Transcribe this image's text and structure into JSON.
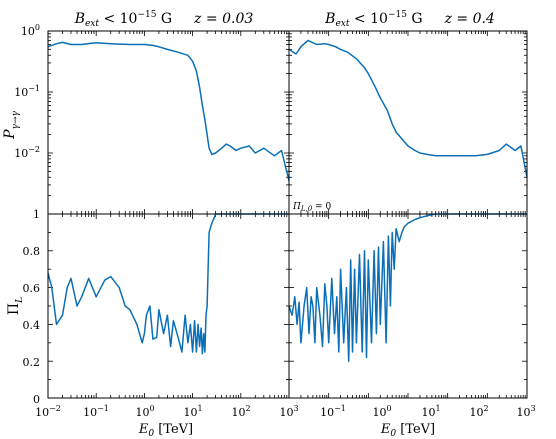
{
  "chart_data": [
    {
      "type": "line",
      "panel": "top-left",
      "title": "B_ext < 10^-15 G    z = 0.03",
      "ylabel": "P_γ→γ",
      "yscale": "log",
      "ylim": [
        0.001,
        1
      ],
      "xscale": "log",
      "xlim": [
        0.01,
        1000
      ],
      "series": [
        {
          "color": "#0b6fb8",
          "x": [
            0.01,
            0.015,
            0.02,
            0.03,
            0.05,
            0.08,
            0.1,
            0.2,
            0.3,
            0.5,
            0.8,
            1,
            1.5,
            2,
            3,
            5,
            8,
            10,
            12,
            14,
            16,
            18,
            20,
            22,
            25,
            30,
            40,
            50,
            60,
            80,
            100,
            150,
            200,
            300,
            500,
            700,
            1000
          ],
          "y": [
            0.55,
            0.62,
            0.65,
            0.6,
            0.6,
            0.63,
            0.64,
            0.62,
            0.61,
            0.6,
            0.6,
            0.6,
            0.58,
            0.55,
            0.5,
            0.45,
            0.4,
            0.32,
            0.22,
            0.12,
            0.06,
            0.035,
            0.02,
            0.012,
            0.0095,
            0.01,
            0.012,
            0.014,
            0.013,
            0.011,
            0.012,
            0.013,
            0.01,
            0.012,
            0.009,
            0.011,
            0.0035
          ]
        }
      ]
    },
    {
      "type": "line",
      "panel": "top-right",
      "title": "B_ext < 10^-15 G    z = 0.4",
      "yscale": "log",
      "ylim": [
        0.001,
        1
      ],
      "xscale": "log",
      "xlim": [
        0.001,
        1000
      ],
      "series": [
        {
          "color": "#0b6fb8",
          "x": [
            0.001,
            0.0015,
            0.002,
            0.003,
            0.005,
            0.008,
            0.01,
            0.015,
            0.02,
            0.03,
            0.05,
            0.08,
            0.1,
            0.15,
            0.2,
            0.3,
            0.4,
            0.5,
            0.7,
            1,
            1.5,
            2,
            3,
            5,
            10,
            20,
            50,
            100,
            200,
            300,
            500,
            700,
            1000
          ],
          "y": [
            0.5,
            0.42,
            0.55,
            0.7,
            0.6,
            0.62,
            0.6,
            0.55,
            0.5,
            0.45,
            0.35,
            0.25,
            0.2,
            0.12,
            0.08,
            0.05,
            0.03,
            0.022,
            0.017,
            0.013,
            0.011,
            0.01,
            0.0095,
            0.009,
            0.009,
            0.009,
            0.009,
            0.0095,
            0.011,
            0.014,
            0.011,
            0.013,
            0.004
          ]
        }
      ]
    },
    {
      "type": "line",
      "panel": "bottom-left",
      "ylabel": "Π_L",
      "xlabel": "E_0 [TeV]",
      "ylim": [
        0,
        1
      ],
      "yticks": [
        0,
        0.2,
        0.4,
        0.6,
        0.8,
        1
      ],
      "xscale": "log",
      "xlim": [
        0.01,
        1000
      ],
      "xticks": [
        "10^-2",
        "10^-1",
        "10^0",
        "10^1",
        "10^2",
        "10^3"
      ],
      "series": [
        {
          "color": "#0b6fb8",
          "x": [
            0.01,
            0.012,
            0.015,
            0.02,
            0.025,
            0.03,
            0.04,
            0.05,
            0.07,
            0.1,
            0.15,
            0.2,
            0.3,
            0.4,
            0.5,
            0.7,
            0.9,
            1.0,
            1.1,
            1.3,
            1.5,
            1.8,
            2.0,
            2.5,
            3,
            3.5,
            4,
            5,
            6,
            7,
            8,
            9,
            10,
            11,
            12,
            13,
            14,
            15,
            16,
            17,
            18,
            19,
            20,
            22,
            25,
            28,
            30,
            35,
            40,
            50,
            100,
            200,
            500,
            1000
          ],
          "y": [
            0.68,
            0.6,
            0.4,
            0.45,
            0.6,
            0.65,
            0.5,
            0.55,
            0.65,
            0.55,
            0.64,
            0.66,
            0.6,
            0.5,
            0.48,
            0.4,
            0.3,
            0.35,
            0.45,
            0.5,
            0.32,
            0.33,
            0.48,
            0.35,
            0.45,
            0.28,
            0.42,
            0.33,
            0.25,
            0.45,
            0.3,
            0.4,
            0.25,
            0.42,
            0.25,
            0.4,
            0.28,
            0.38,
            0.24,
            0.35,
            0.25,
            0.45,
            0.5,
            0.9,
            0.95,
            0.98,
            1.0,
            1.0,
            1.0,
            1.0,
            1.0,
            1.0,
            1.0,
            1.0
          ]
        }
      ]
    },
    {
      "type": "line",
      "panel": "bottom-right",
      "annotation": "Π_L,0 = 0",
      "xlabel": "E_0 [TeV]",
      "ylim": [
        0,
        1
      ],
      "xscale": "log",
      "xlim": [
        0.001,
        1000
      ],
      "xticks": [
        "10^-1",
        "10^0",
        "10^1",
        "10^2",
        "10^3"
      ],
      "series": [
        {
          "color": "#0b6fb8",
          "x": [
            0.001,
            0.0012,
            0.0014,
            0.0016,
            0.0018,
            0.002,
            0.0024,
            0.0028,
            0.0032,
            0.0036,
            0.004,
            0.0045,
            0.005,
            0.006,
            0.007,
            0.008,
            0.009,
            0.01,
            0.012,
            0.014,
            0.016,
            0.018,
            0.02,
            0.024,
            0.028,
            0.032,
            0.036,
            0.04,
            0.045,
            0.05,
            0.06,
            0.07,
            0.08,
            0.09,
            0.1,
            0.12,
            0.14,
            0.16,
            0.18,
            0.2,
            0.24,
            0.28,
            0.32,
            0.36,
            0.4,
            0.45,
            0.5,
            0.6,
            0.7,
            0.8,
            1,
            1.5,
            2,
            3,
            5,
            10,
            20,
            50,
            100,
            200,
            500,
            1000
          ],
          "y": [
            0.5,
            0.45,
            0.55,
            0.4,
            0.52,
            0.3,
            0.5,
            0.6,
            0.35,
            0.55,
            0.5,
            0.3,
            0.6,
            0.45,
            0.28,
            0.62,
            0.5,
            0.3,
            0.65,
            0.35,
            0.55,
            0.25,
            0.7,
            0.3,
            0.6,
            0.2,
            0.75,
            0.25,
            0.7,
            0.3,
            0.78,
            0.25,
            0.8,
            0.22,
            0.75,
            0.3,
            0.8,
            0.35,
            0.82,
            0.4,
            0.85,
            0.3,
            0.88,
            0.5,
            0.9,
            0.7,
            0.92,
            0.85,
            0.9,
            0.93,
            0.95,
            0.97,
            0.98,
            0.99,
            1.0,
            1.0,
            1.0,
            1.0,
            1.0,
            1.0,
            1.0,
            1.0
          ]
        }
      ]
    }
  ],
  "labels": {
    "title_left_b": "B",
    "title_left_sub": "ext",
    "title_left_rest": " < 10",
    "title_left_exp": "−15",
    "title_left_unit": " G",
    "title_left_z": "z = 0.03",
    "title_right_b": "B",
    "title_right_sub": "ext",
    "title_right_rest": " < 10",
    "title_right_exp": "−15",
    "title_right_unit": " G",
    "title_right_z": "z = 0.4",
    "ylabel_top_main": "P",
    "ylabel_top_sub": "γ→γ",
    "ylabel_bottom_main": "Π",
    "ylabel_bottom_sub": "L",
    "xlabel_left_main": "E",
    "xlabel_left_sub": "0",
    "xlabel_left_unit": " [TeV]",
    "xlabel_right_main": "E",
    "xlabel_right_sub": "0",
    "xlabel_right_unit": " [TeV]",
    "annotation": "Π",
    "annotation_sub": "L,0",
    "annotation_rest": " = 0",
    "ytick_top_0": "10",
    "ytick_top_0_exp": "0",
    "ytick_top_1": "10",
    "ytick_top_1_exp": "−1",
    "ytick_top_2": "10",
    "ytick_top_2_exp": "−2",
    "ytick_bot_0": "1",
    "ytick_bot_1": "0.8",
    "ytick_bot_2": "0.6",
    "ytick_bot_3": "0.4",
    "ytick_bot_4": "0.2",
    "ytick_bot_5": "0",
    "xtick_l_0": "10",
    "xtick_l_0_exp": "−2",
    "xtick_l_1": "10",
    "xtick_l_1_exp": "−1",
    "xtick_l_2": "10",
    "xtick_l_2_exp": "0",
    "xtick_l_3": "10",
    "xtick_l_3_exp": "1",
    "xtick_l_4": "10",
    "xtick_l_4_exp": "2",
    "xtick_l_5": "10",
    "xtick_l_5_exp": "3",
    "xtick_r_1": "10",
    "xtick_r_1_exp": "−1",
    "xtick_r_2": "10",
    "xtick_r_2_exp": "0",
    "xtick_r_3": "10",
    "xtick_r_3_exp": "1",
    "xtick_r_4": "10",
    "xtick_r_4_exp": "2",
    "xtick_r_5": "10",
    "xtick_r_5_exp": "3"
  }
}
